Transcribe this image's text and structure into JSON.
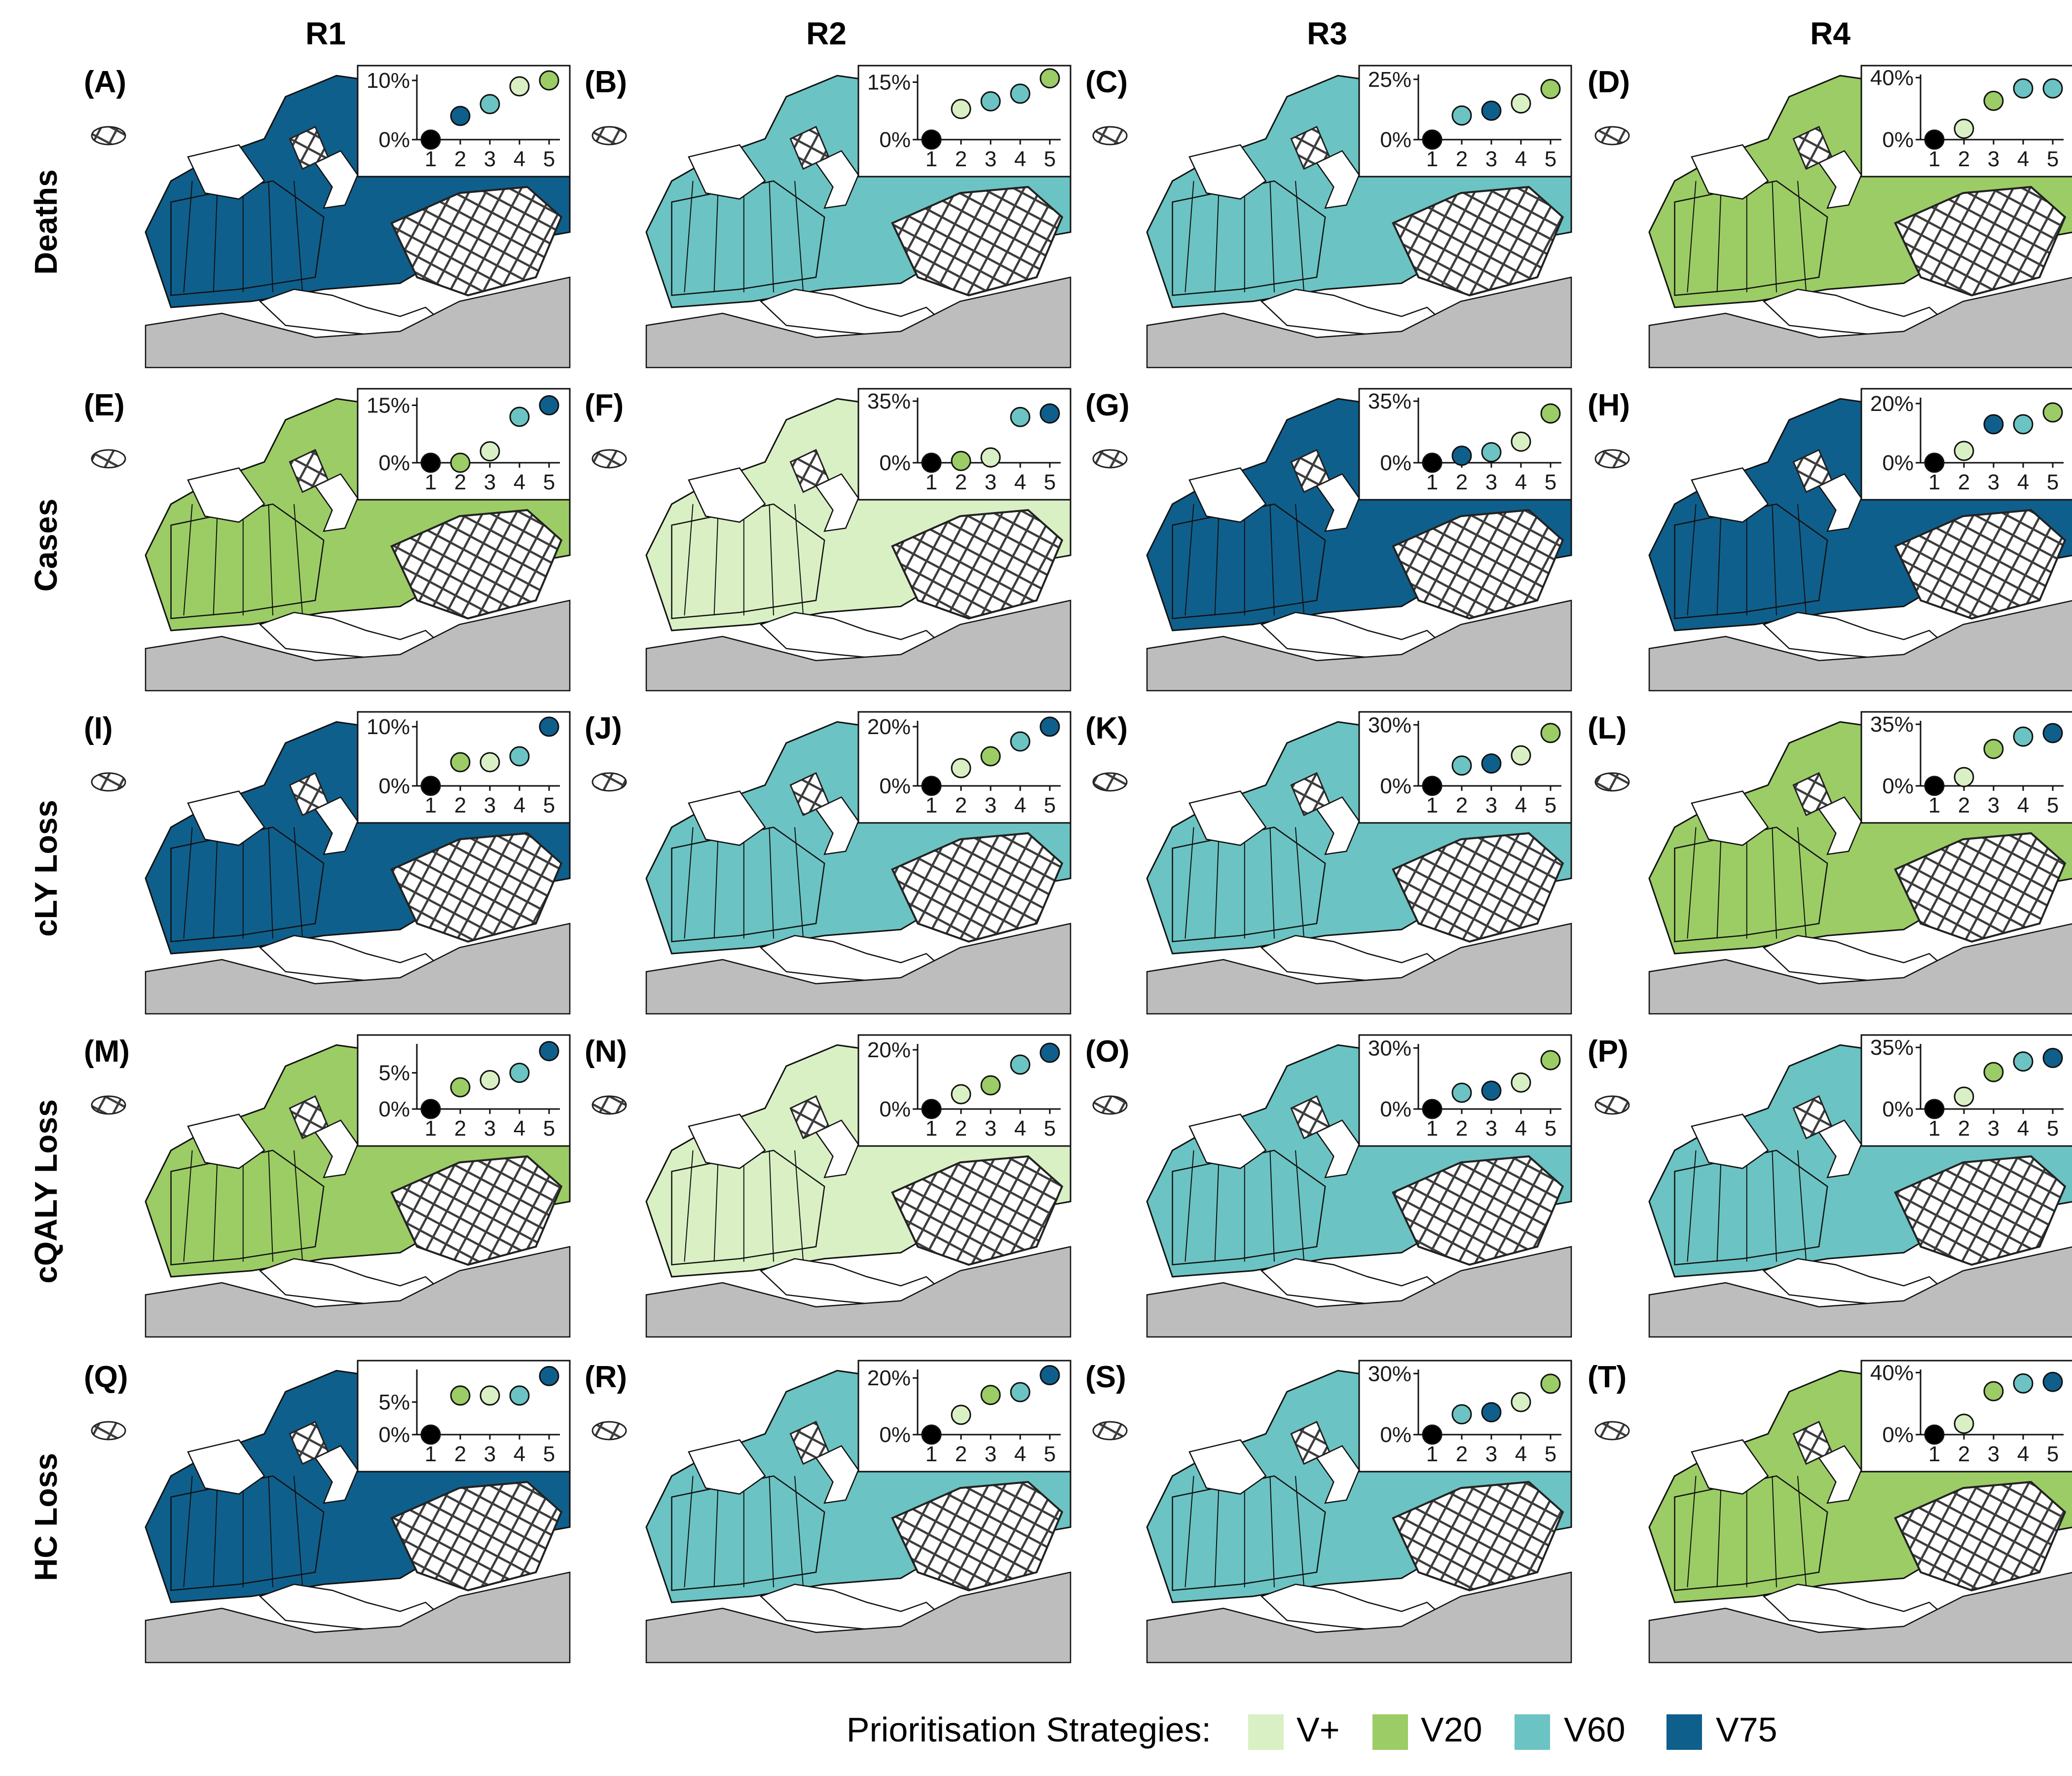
{
  "columns": [
    "R1",
    "R2",
    "R3",
    "R4"
  ],
  "rows": [
    "Deaths",
    "Cases",
    "cLY Loss",
    "cQALY Loss",
    "HC Loss"
  ],
  "colors": {
    "V+": "#d9f0c4",
    "V20": "#9ccc65",
    "V60": "#6cc3c3",
    "V75": "#0f5f8c",
    "baseline": "#000000",
    "hatched": "#3d3d3d",
    "land_other": "#bdbdbd",
    "water": "#ffffff"
  },
  "legend": {
    "title": "Prioritisation Strategies:",
    "items": [
      {
        "label": "V+",
        "color": "#d9f0c4"
      },
      {
        "label": "V20",
        "color": "#9ccc65"
      },
      {
        "label": "V60",
        "color": "#6cc3c3"
      },
      {
        "label": "V75",
        "color": "#0f5f8c"
      }
    ]
  },
  "chart_data": [
    {
      "type": "scatter",
      "panel": "(A)",
      "column": "R1",
      "row": "Deaths",
      "x": [
        1,
        2,
        3,
        4,
        5
      ],
      "values": [
        0,
        4,
        6,
        9,
        10
      ],
      "strategy": [
        "baseline",
        "V75",
        "V60",
        "V+",
        "V20"
      ],
      "yticks": [
        "0%",
        "10%"
      ],
      "ylim": [
        0,
        11
      ],
      "map_fill": "V75"
    },
    {
      "type": "scatter",
      "panel": "(B)",
      "column": "R2",
      "row": "Deaths",
      "x": [
        1,
        2,
        3,
        4,
        5
      ],
      "values": [
        0,
        8,
        10,
        12,
        16
      ],
      "strategy": [
        "baseline",
        "V+",
        "V60",
        "V60",
        "V20"
      ],
      "yticks": [
        "0%",
        "15%"
      ],
      "ylim": [
        0,
        17
      ],
      "map_fill": "V60"
    },
    {
      "type": "scatter",
      "panel": "(C)",
      "column": "R3",
      "row": "Deaths",
      "x": [
        1,
        2,
        3,
        4,
        5
      ],
      "values": [
        0,
        10,
        12,
        15,
        21
      ],
      "strategy": [
        "baseline",
        "V60",
        "V75",
        "V+",
        "V20"
      ],
      "yticks": [
        "0%",
        "25%"
      ],
      "ylim": [
        0,
        27
      ],
      "map_fill": "V60"
    },
    {
      "type": "scatter",
      "panel": "(D)",
      "column": "R4",
      "row": "Deaths",
      "x": [
        1,
        2,
        3,
        4,
        5
      ],
      "values": [
        0,
        7,
        25,
        33,
        33
      ],
      "strategy": [
        "baseline",
        "V+",
        "V20",
        "V60",
        "V60"
      ],
      "yticks": [
        "0%",
        "40%"
      ],
      "ylim": [
        0,
        42
      ],
      "map_fill": "V20"
    },
    {
      "type": "scatter",
      "panel": "(E)",
      "column": "R1",
      "row": "Cases",
      "x": [
        1,
        2,
        3,
        4,
        5
      ],
      "values": [
        0,
        0,
        3,
        12,
        15
      ],
      "strategy": [
        "baseline",
        "V20",
        "V+",
        "V60",
        "V75"
      ],
      "yticks": [
        "0%",
        "15%"
      ],
      "ylim": [
        0,
        17
      ],
      "map_fill": "V20"
    },
    {
      "type": "scatter",
      "panel": "(F)",
      "column": "R2",
      "row": "Cases",
      "x": [
        1,
        2,
        3,
        4,
        5
      ],
      "values": [
        0,
        1,
        3,
        26,
        28
      ],
      "strategy": [
        "baseline",
        "V20",
        "V+",
        "V60",
        "V75"
      ],
      "yticks": [
        "0%",
        "35%"
      ],
      "ylim": [
        0,
        37
      ],
      "map_fill": "V+"
    },
    {
      "type": "scatter",
      "panel": "(G)",
      "column": "R3",
      "row": "Cases",
      "x": [
        1,
        2,
        3,
        4,
        5
      ],
      "values": [
        0,
        4,
        6,
        12,
        28
      ],
      "strategy": [
        "baseline",
        "V75",
        "V60",
        "V+",
        "V20"
      ],
      "yticks": [
        "0%",
        "35%"
      ],
      "ylim": [
        0,
        37
      ],
      "map_fill": "V75"
    },
    {
      "type": "scatter",
      "panel": "(H)",
      "column": "R4",
      "row": "Cases",
      "x": [
        1,
        2,
        3,
        4,
        5
      ],
      "values": [
        0,
        4,
        13,
        13,
        17
      ],
      "strategy": [
        "baseline",
        "V+",
        "V75",
        "V60",
        "V20"
      ],
      "yticks": [
        "0%",
        "20%"
      ],
      "ylim": [
        0,
        22
      ],
      "map_fill": "V75"
    },
    {
      "type": "scatter",
      "panel": "(I)",
      "column": "R1",
      "row": "cLY Loss",
      "x": [
        1,
        2,
        3,
        4,
        5
      ],
      "values": [
        0,
        4,
        4,
        5,
        10
      ],
      "strategy": [
        "baseline",
        "V20",
        "V+",
        "V60",
        "V75"
      ],
      "yticks": [
        "0%",
        "10%"
      ],
      "ylim": [
        0,
        11
      ],
      "map_fill": "V75"
    },
    {
      "type": "scatter",
      "panel": "(J)",
      "column": "R2",
      "row": "cLY Loss",
      "x": [
        1,
        2,
        3,
        4,
        5
      ],
      "values": [
        0,
        6,
        10,
        15,
        20
      ],
      "strategy": [
        "baseline",
        "V+",
        "V20",
        "V60",
        "V75"
      ],
      "yticks": [
        "0%",
        "20%"
      ],
      "ylim": [
        0,
        22
      ],
      "map_fill": "V60"
    },
    {
      "type": "scatter",
      "panel": "(K)",
      "column": "R3",
      "row": "cLY Loss",
      "x": [
        1,
        2,
        3,
        4,
        5
      ],
      "values": [
        0,
        10,
        11,
        15,
        26
      ],
      "strategy": [
        "baseline",
        "V60",
        "V75",
        "V+",
        "V20"
      ],
      "yticks": [
        "0%",
        "30%"
      ],
      "ylim": [
        0,
        32
      ],
      "map_fill": "V60"
    },
    {
      "type": "scatter",
      "panel": "(L)",
      "column": "R4",
      "row": "cLY Loss",
      "x": [
        1,
        2,
        3,
        4,
        5
      ],
      "values": [
        0,
        5,
        21,
        28,
        30
      ],
      "strategy": [
        "baseline",
        "V+",
        "V20",
        "V60",
        "V75"
      ],
      "yticks": [
        "0%",
        "35%"
      ],
      "ylim": [
        0,
        37
      ],
      "map_fill": "V20"
    },
    {
      "type": "scatter",
      "panel": "(M)",
      "column": "R1",
      "row": "cQALY Loss",
      "x": [
        1,
        2,
        3,
        4,
        5
      ],
      "values": [
        0,
        3,
        4,
        5,
        8
      ],
      "strategy": [
        "baseline",
        "V20",
        "V+",
        "V60",
        "V75"
      ],
      "yticks": [
        "0%",
        "5%"
      ],
      "ylim": [
        0,
        9
      ],
      "map_fill": "V20"
    },
    {
      "type": "scatter",
      "panel": "(N)",
      "column": "R2",
      "row": "cQALY Loss",
      "x": [
        1,
        2,
        3,
        4,
        5
      ],
      "values": [
        0,
        5,
        8,
        15,
        19
      ],
      "strategy": [
        "baseline",
        "V+",
        "V20",
        "V60",
        "V75"
      ],
      "yticks": [
        "0%",
        "20%"
      ],
      "ylim": [
        0,
        22
      ],
      "map_fill": "V+"
    },
    {
      "type": "scatter",
      "panel": "(O)",
      "column": "R3",
      "row": "cQALY Loss",
      "x": [
        1,
        2,
        3,
        4,
        5
      ],
      "values": [
        0,
        8,
        9,
        13,
        24
      ],
      "strategy": [
        "baseline",
        "V60",
        "V75",
        "V+",
        "V20"
      ],
      "yticks": [
        "0%",
        "30%"
      ],
      "ylim": [
        0,
        32
      ],
      "map_fill": "V60"
    },
    {
      "type": "scatter",
      "panel": "(P)",
      "column": "R4",
      "row": "cQALY Loss",
      "x": [
        1,
        2,
        3,
        4,
        5
      ],
      "values": [
        0,
        7,
        21,
        27,
        29
      ],
      "strategy": [
        "baseline",
        "V+",
        "V20",
        "V60",
        "V75"
      ],
      "yticks": [
        "0%",
        "35%"
      ],
      "ylim": [
        0,
        37
      ],
      "map_fill": "V60"
    },
    {
      "type": "scatter",
      "panel": "(Q)",
      "column": "R1",
      "row": "HC Loss",
      "x": [
        1,
        2,
        3,
        4,
        5
      ],
      "values": [
        0,
        6,
        6,
        6,
        9
      ],
      "strategy": [
        "baseline",
        "V20",
        "V+",
        "V60",
        "V75"
      ],
      "yticks": [
        "0%",
        "5%"
      ],
      "ylim": [
        0,
        10
      ],
      "map_fill": "V75"
    },
    {
      "type": "scatter",
      "panel": "(R)",
      "column": "R2",
      "row": "HC Loss",
      "x": [
        1,
        2,
        3,
        4,
        5
      ],
      "values": [
        0,
        7,
        14,
        15,
        21
      ],
      "strategy": [
        "baseline",
        "V+",
        "V20",
        "V60",
        "V75"
      ],
      "yticks": [
        "0%",
        "20%"
      ],
      "ylim": [
        0,
        23
      ],
      "map_fill": "V60"
    },
    {
      "type": "scatter",
      "panel": "(S)",
      "column": "R3",
      "row": "HC Loss",
      "x": [
        1,
        2,
        3,
        4,
        5
      ],
      "values": [
        0,
        10,
        11,
        16,
        25
      ],
      "strategy": [
        "baseline",
        "V60",
        "V75",
        "V+",
        "V20"
      ],
      "yticks": [
        "0%",
        "30%"
      ],
      "ylim": [
        0,
        32
      ],
      "map_fill": "V60"
    },
    {
      "type": "scatter",
      "panel": "(T)",
      "column": "R4",
      "row": "HC Loss",
      "x": [
        1,
        2,
        3,
        4,
        5
      ],
      "values": [
        0,
        7,
        28,
        33,
        34
      ],
      "strategy": [
        "baseline",
        "V+",
        "V20",
        "V60",
        "V75"
      ],
      "yticks": [
        "0%",
        "40%"
      ],
      "ylim": [
        0,
        42
      ],
      "map_fill": "V20"
    }
  ]
}
